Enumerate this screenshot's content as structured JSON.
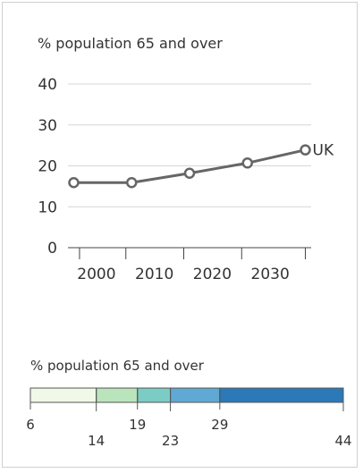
{
  "chart_data": {
    "type": "line",
    "ylabel": "% population 65 and over",
    "ylim": [
      0,
      40
    ],
    "yticks": [
      0,
      10,
      20,
      30,
      40
    ],
    "xlim": [
      1996,
      2038
    ],
    "xticks": [
      2000,
      2010,
      2020,
      2030
    ],
    "grid": true,
    "series": [
      {
        "name": "UK",
        "color": "#666666",
        "x": [
          1997,
          2007,
          2017,
          2027,
          2037
        ],
        "values": [
          15.9,
          15.9,
          18.2,
          20.7,
          23.9
        ]
      }
    ]
  },
  "legend": {
    "title": "% population 65 and over",
    "breaks": [
      6,
      14,
      19,
      23,
      29,
      44
    ],
    "colors": [
      "#f0f9e8",
      "#bae4bc",
      "#7bccc4",
      "#5fa9d4",
      "#2b79b8"
    ]
  }
}
